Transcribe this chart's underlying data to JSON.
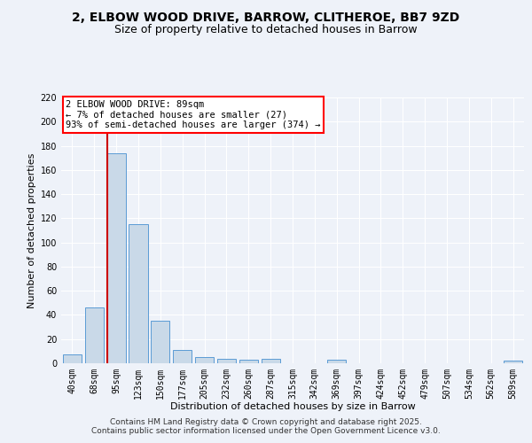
{
  "title": "2, ELBOW WOOD DRIVE, BARROW, CLITHEROE, BB7 9ZD",
  "subtitle": "Size of property relative to detached houses in Barrow",
  "xlabel": "Distribution of detached houses by size in Barrow",
  "ylabel": "Number of detached properties",
  "categories": [
    "40sqm",
    "68sqm",
    "95sqm",
    "123sqm",
    "150sqm",
    "177sqm",
    "205sqm",
    "232sqm",
    "260sqm",
    "287sqm",
    "315sqm",
    "342sqm",
    "369sqm",
    "397sqm",
    "424sqm",
    "452sqm",
    "479sqm",
    "507sqm",
    "534sqm",
    "562sqm",
    "589sqm"
  ],
  "values": [
    7,
    46,
    174,
    115,
    35,
    11,
    5,
    4,
    3,
    4,
    0,
    0,
    3,
    0,
    0,
    0,
    0,
    0,
    0,
    0,
    2
  ],
  "bar_color": "#c9d9e8",
  "bar_edge_color": "#5b9bd5",
  "vline_color": "#cc0000",
  "vline_x_index": 2,
  "annotation_box_text": "2 ELBOW WOOD DRIVE: 89sqm\n← 7% of detached houses are smaller (27)\n93% of semi-detached houses are larger (374) →",
  "ylim": [
    0,
    220
  ],
  "yticks": [
    0,
    20,
    40,
    60,
    80,
    100,
    120,
    140,
    160,
    180,
    200,
    220
  ],
  "background_color": "#eef2f9",
  "grid_color": "#ffffff",
  "footer1": "Contains HM Land Registry data © Crown copyright and database right 2025.",
  "footer2": "Contains public sector information licensed under the Open Government Licence v3.0.",
  "title_fontsize": 10,
  "subtitle_fontsize": 9,
  "axis_label_fontsize": 8,
  "tick_fontsize": 7,
  "annotation_fontsize": 7.5,
  "footer_fontsize": 6.5
}
